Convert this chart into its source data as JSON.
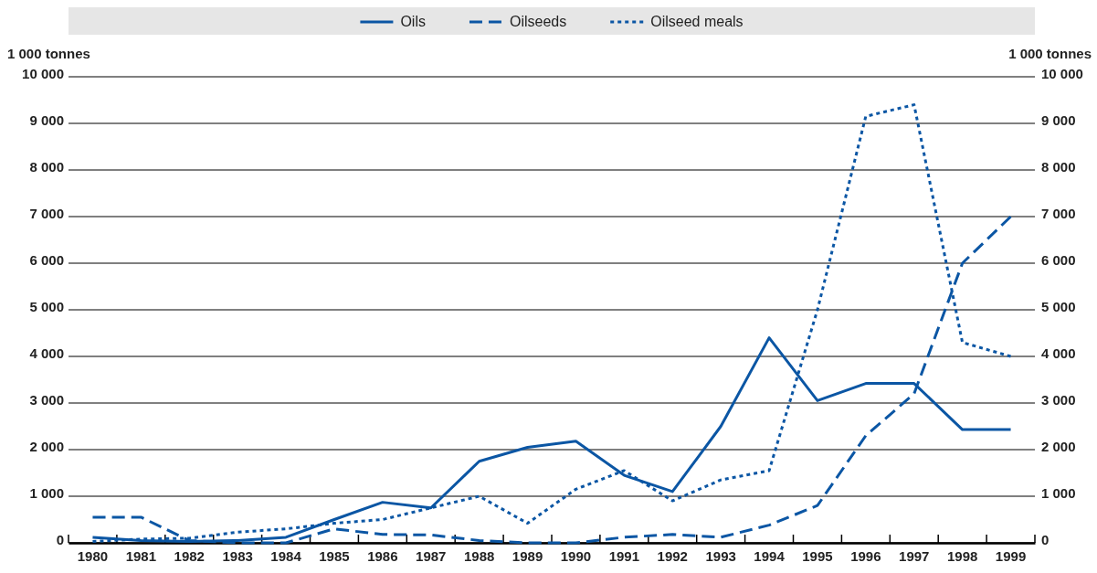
{
  "chart_data": {
    "type": "line",
    "ylabel": "1 000 tonnes",
    "y2label": "1 000 tonnes",
    "categories": [
      "1980",
      "1981",
      "1982",
      "1983",
      "1984",
      "1985",
      "1986",
      "1987",
      "1988",
      "1989",
      "1990",
      "1991",
      "1992",
      "1993",
      "1994",
      "1995",
      "1996",
      "1997",
      "1998",
      "1999"
    ],
    "series": [
      {
        "name": "Oils",
        "color": "#0b56a4",
        "line_style": "solid",
        "values": [
          120,
          50,
          30,
          50,
          120,
          500,
          870,
          750,
          1750,
          2050,
          2180,
          1450,
          1100,
          2500,
          4400,
          3050,
          3420,
          3420,
          2430,
          2430
        ]
      },
      {
        "name": "Oilseeds",
        "color": "#0b56a4",
        "line_style": "dashed",
        "values": [
          550,
          550,
          50,
          0,
          0,
          300,
          180,
          170,
          50,
          0,
          0,
          120,
          180,
          120,
          380,
          800,
          2300,
          3200,
          6000,
          7000
        ]
      },
      {
        "name": "Oilseed meals",
        "color": "#0b56a4",
        "line_style": "dotted",
        "values": [
          30,
          80,
          100,
          230,
          300,
          420,
          500,
          750,
          1000,
          420,
          1150,
          1550,
          900,
          1350,
          1550,
          5000,
          9150,
          9400,
          4300,
          4000
        ]
      }
    ],
    "ylim": [
      0,
      10000
    ],
    "yticks": [
      0,
      {
        "value": 1000,
        "label": "1 000"
      },
      {
        "value": 2000,
        "label": "2 000"
      },
      {
        "value": 3000,
        "label": "3 000"
      },
      {
        "value": 4000,
        "label": "4 000"
      },
      {
        "value": 5000,
        "label": "5 000"
      },
      {
        "value": 6000,
        "label": "6 000"
      },
      {
        "value": 7000,
        "label": "7 000"
      },
      {
        "value": 8000,
        "label": "8 000"
      },
      {
        "value": 9000,
        "label": "9 000"
      },
      {
        "value": 10000,
        "label": "10 000"
      }
    ],
    "y2lim": [
      0,
      10000
    ],
    "y2ticks": [
      0,
      {
        "value": 1000,
        "label": "1 000"
      },
      {
        "value": 2000,
        "label": "2 000"
      },
      {
        "value": 3000,
        "label": "3 000"
      },
      {
        "value": 4000,
        "label": "4 000"
      },
      {
        "value": 5000,
        "label": "5 000"
      },
      {
        "value": 6000,
        "label": "6 000"
      },
      {
        "value": 7000,
        "label": "7 000"
      },
      {
        "value": 8000,
        "label": "8 000"
      },
      {
        "value": 9000,
        "label": "9 000"
      },
      {
        "value": 10000,
        "label": "10 000"
      }
    ],
    "grid": "y",
    "legend": "top"
  }
}
